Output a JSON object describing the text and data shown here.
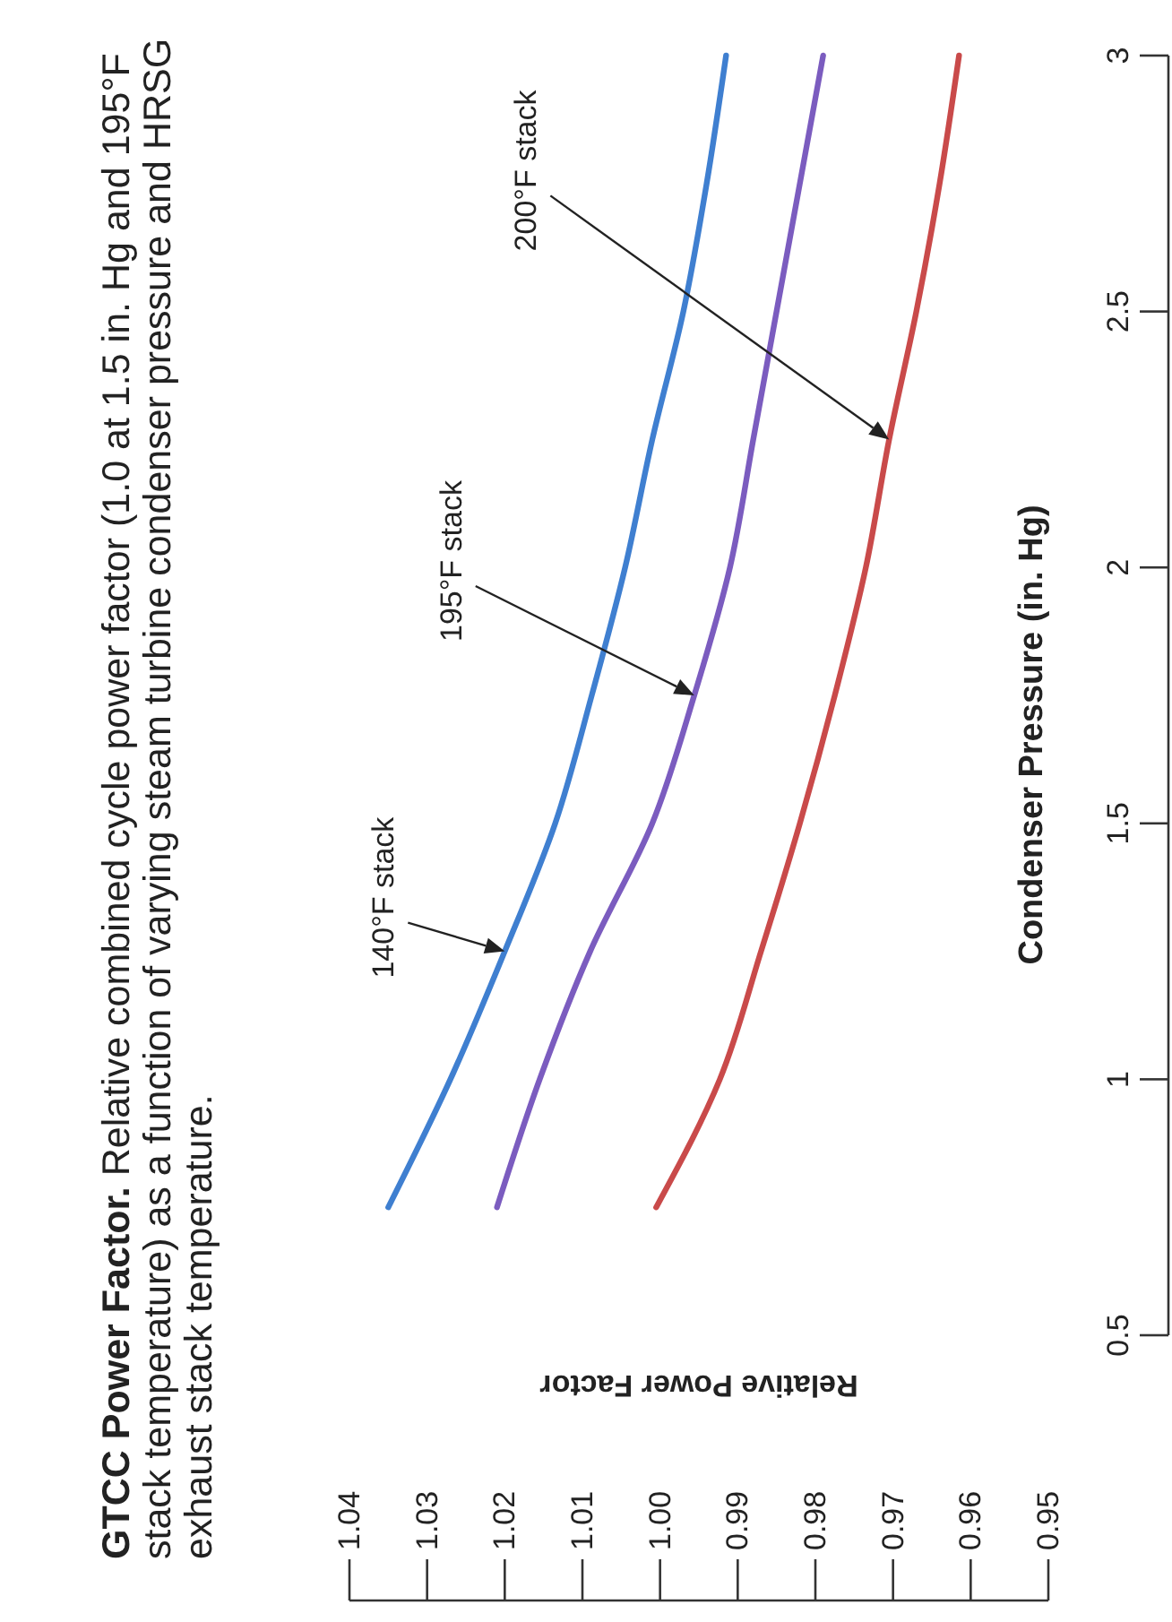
{
  "chart_data": {
    "type": "line",
    "title": "GTCC Power Factor.",
    "subtitle": "Relative combined cycle power factor (1.0 at 1.5 in. Hg and 195°F stack temperature) as a function of varying steam turbine condenser pressure and HRSG exhaust stack temperature.",
    "xlabel": "Relative Power Factor",
    "y2label": "Condenser Pressure (in. Hg)",
    "series": [
      {
        "name": "140°F stack",
        "color": "#3f7fd0",
        "axis": "y2",
        "x": [
          1.035,
          1.027,
          1.02,
          1.0135,
          1.0088,
          1.0045,
          1.001,
          0.997,
          0.994,
          0.9915
        ],
        "values": [
          0.75,
          1.0,
          1.25,
          1.5,
          1.75,
          2.0,
          2.25,
          2.5,
          2.75,
          3.0
        ]
      },
      {
        "name": "195°F stack",
        "color": "#7b5cbf",
        "axis": "y2",
        "x": [
          1.021,
          1.0155,
          1.009,
          1.001,
          0.9956,
          0.991,
          0.988,
          0.985,
          0.982,
          0.979
        ],
        "values": [
          0.75,
          1.0,
          1.25,
          1.5,
          1.75,
          2.0,
          2.25,
          2.5,
          2.75,
          3.0
        ]
      },
      {
        "name": "200°F stack",
        "color": "#c94a4a",
        "axis": "y2",
        "x": [
          1.0005,
          0.9923,
          0.987,
          0.982,
          0.9775,
          0.9735,
          0.9705,
          0.967,
          0.964,
          0.9615
        ],
        "values": [
          0.75,
          1.0,
          1.25,
          1.5,
          1.75,
          2.0,
          2.25,
          2.5,
          2.75,
          3.0
        ]
      }
    ],
    "xlim": [
      1.04,
      0.95
    ],
    "xticks": [
      1.04,
      1.03,
      1.02,
      1.01,
      {
        "value": 1.0,
        "label": "1.00"
      },
      0.99,
      0.98,
      0.97,
      0.96,
      0.95
    ],
    "y2lim": [
      0.5,
      3
    ],
    "y2ticks": [
      0.5,
      1,
      1.5,
      2,
      2.5,
      3
    ],
    "grid": false,
    "legend": false,
    "marker": "none",
    "line_style": "solid"
  }
}
